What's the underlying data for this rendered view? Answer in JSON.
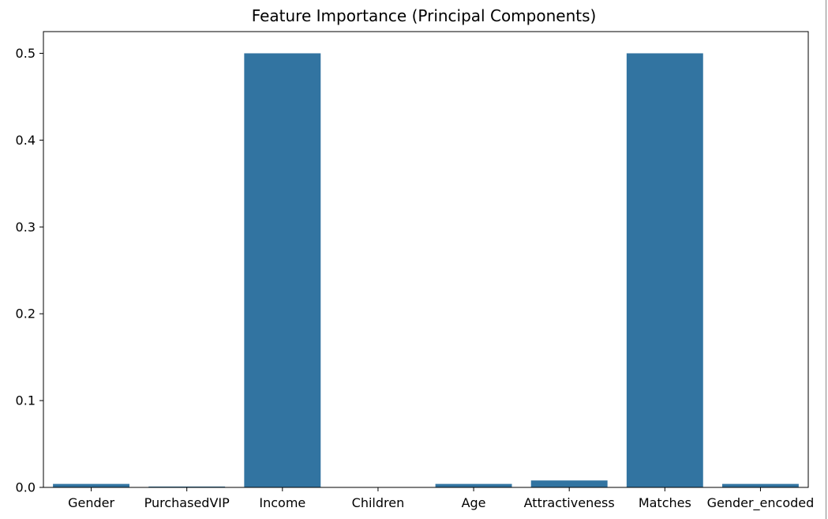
{
  "chart_data": {
    "type": "bar",
    "title": "Feature Importance (Principal Components)",
    "xlabel": "",
    "ylabel": "",
    "categories": [
      "Gender",
      "PurchasedVIP",
      "Income",
      "Children",
      "Age",
      "Attractiveness",
      "Matches",
      "Gender_encoded"
    ],
    "values": [
      0.004,
      0.001,
      0.5,
      0.0,
      0.004,
      0.008,
      0.5,
      0.004
    ],
    "ylim": [
      0,
      0.525
    ],
    "yticks": [
      0.0,
      0.1,
      0.2,
      0.3,
      0.4,
      0.5
    ],
    "ytick_labels": [
      "0.0",
      "0.1",
      "0.2",
      "0.3",
      "0.4",
      "0.5"
    ],
    "bar_color": "#3274a1",
    "grid": false,
    "legend": "none"
  }
}
